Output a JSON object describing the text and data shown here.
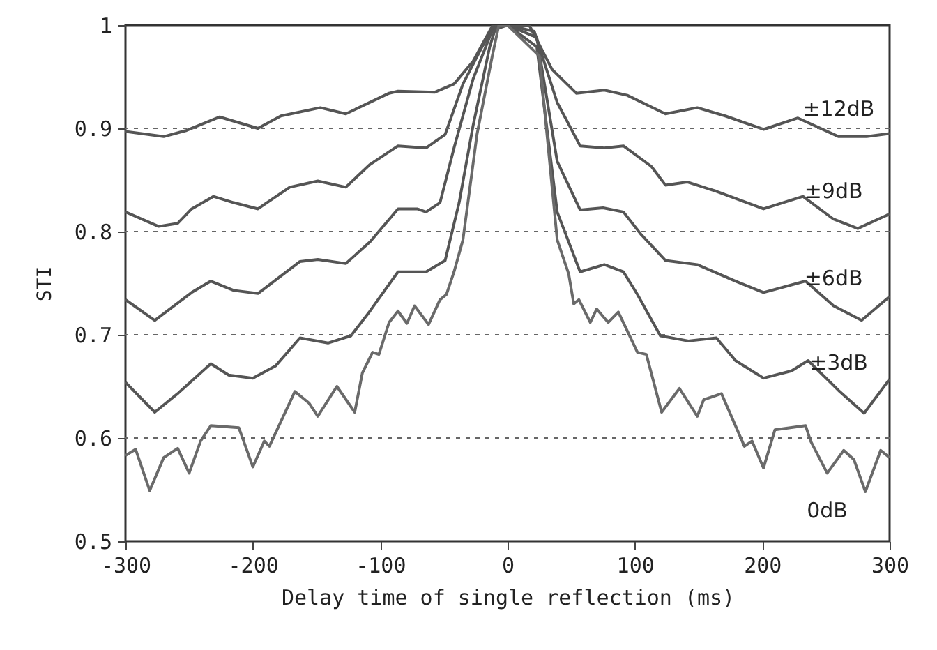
{
  "chart_data": {
    "type": "line",
    "xlabel": "Delay time of single reflection (ms)",
    "ylabel": "STI",
    "xlim": [
      -300,
      300
    ],
    "ylim": [
      0.5,
      1
    ],
    "xticks": [
      -300,
      -200,
      -100,
      0,
      100,
      200,
      300
    ],
    "yticks": [
      0.5,
      0.6,
      0.7,
      0.8,
      0.9,
      1
    ],
    "grid": "y",
    "legend": false,
    "series": [
      {
        "name": "±12dB",
        "color": "#555555",
        "x": [
          -300,
          -270,
          -252,
          -226,
          -196,
          -178,
          -147,
          -127,
          -93,
          -86,
          -57,
          -42,
          -27,
          -12,
          0,
          17,
          35,
          54,
          76,
          94,
          124,
          149,
          171,
          201,
          228,
          260,
          282,
          300
        ],
        "values": [
          0.897,
          0.892,
          0.898,
          0.911,
          0.9,
          0.912,
          0.92,
          0.914,
          0.934,
          0.936,
          0.935,
          0.943,
          0.965,
          0.999,
          1,
          1,
          0.957,
          0.934,
          0.937,
          0.932,
          0.914,
          0.92,
          0.912,
          0.899,
          0.91,
          0.892,
          0.892,
          0.895
        ]
      },
      {
        "name": "±9dB",
        "color": "#555555",
        "x": [
          -300,
          -274,
          -259,
          -248,
          -231,
          -215,
          -196,
          -171,
          -149,
          -127,
          -108,
          -86,
          -64,
          -49,
          -35,
          -20,
          -10,
          0,
          21,
          39,
          57,
          76,
          91,
          113,
          124,
          141,
          164,
          201,
          232,
          256,
          275,
          300
        ],
        "values": [
          0.819,
          0.805,
          0.808,
          0.822,
          0.834,
          0.828,
          0.822,
          0.843,
          0.849,
          0.843,
          0.865,
          0.883,
          0.881,
          0.894,
          0.943,
          0.979,
          0.999,
          1,
          0.994,
          0.925,
          0.883,
          0.881,
          0.883,
          0.863,
          0.845,
          0.848,
          0.839,
          0.822,
          0.834,
          0.812,
          0.803,
          0.817
        ]
      },
      {
        "name": "±6dB",
        "color": "#555555",
        "x": [
          -300,
          -277,
          -248,
          -233,
          -215,
          -196,
          -163,
          -149,
          -127,
          -108,
          -86,
          -71,
          -64,
          -53,
          -42,
          -27,
          -12,
          0,
          23,
          39,
          57,
          75,
          91,
          105,
          124,
          149,
          179,
          201,
          234,
          256,
          278,
          300
        ],
        "values": [
          0.734,
          0.714,
          0.741,
          0.752,
          0.743,
          0.74,
          0.771,
          0.773,
          0.769,
          0.79,
          0.822,
          0.822,
          0.819,
          0.828,
          0.881,
          0.948,
          0.995,
          1,
          0.988,
          0.868,
          0.821,
          0.823,
          0.819,
          0.797,
          0.772,
          0.768,
          0.752,
          0.741,
          0.752,
          0.728,
          0.714,
          0.737
        ]
      },
      {
        "name": "±3dB",
        "color": "#555555",
        "x": [
          -300,
          -277,
          -259,
          -233,
          -219,
          -200,
          -182,
          -163,
          -141,
          -123,
          -108,
          -86,
          -64,
          -49,
          -38,
          -27,
          -14,
          -9,
          0,
          23,
          39,
          57,
          76,
          91,
          102,
          120,
          142,
          164,
          179,
          201,
          223,
          236,
          260,
          280,
          300
        ],
        "values": [
          0.654,
          0.625,
          0.643,
          0.672,
          0.661,
          0.658,
          0.67,
          0.697,
          0.692,
          0.699,
          0.723,
          0.761,
          0.761,
          0.772,
          0.828,
          0.903,
          0.979,
          0.999,
          1,
          0.979,
          0.819,
          0.761,
          0.768,
          0.761,
          0.739,
          0.699,
          0.694,
          0.697,
          0.675,
          0.658,
          0.665,
          0.675,
          0.646,
          0.624,
          0.657
        ]
      },
      {
        "name": "0dB",
        "color": "#6a6a6a",
        "x": [
          -300,
          -292,
          -281,
          -270,
          -259,
          -250,
          -241,
          -233,
          -211,
          -200,
          -191,
          -187,
          -167,
          -156,
          -149,
          -134,
          -120,
          -114,
          -106,
          -101,
          -93,
          -86,
          -79,
          -73,
          -62,
          -53,
          -48,
          -42,
          -35,
          -24,
          -12,
          -7,
          0,
          25,
          39,
          48,
          52,
          56,
          65,
          70,
          79,
          87,
          102,
          109,
          121,
          135,
          149,
          154,
          168,
          186,
          192,
          201,
          210,
          234,
          238,
          251,
          264,
          272,
          281,
          293,
          300
        ],
        "values": [
          0.583,
          0.589,
          0.549,
          0.581,
          0.59,
          0.566,
          0.597,
          0.612,
          0.61,
          0.572,
          0.597,
          0.592,
          0.645,
          0.634,
          0.621,
          0.65,
          0.625,
          0.663,
          0.683,
          0.681,
          0.712,
          0.723,
          0.711,
          0.728,
          0.71,
          0.734,
          0.739,
          0.761,
          0.792,
          0.894,
          0.97,
          0.999,
          1,
          0.97,
          0.792,
          0.759,
          0.73,
          0.734,
          0.712,
          0.725,
          0.712,
          0.722,
          0.683,
          0.681,
          0.625,
          0.648,
          0.621,
          0.637,
          0.643,
          0.592,
          0.597,
          0.571,
          0.608,
          0.612,
          0.597,
          0.566,
          0.588,
          0.579,
          0.548,
          0.588,
          0.581
        ]
      }
    ]
  }
}
